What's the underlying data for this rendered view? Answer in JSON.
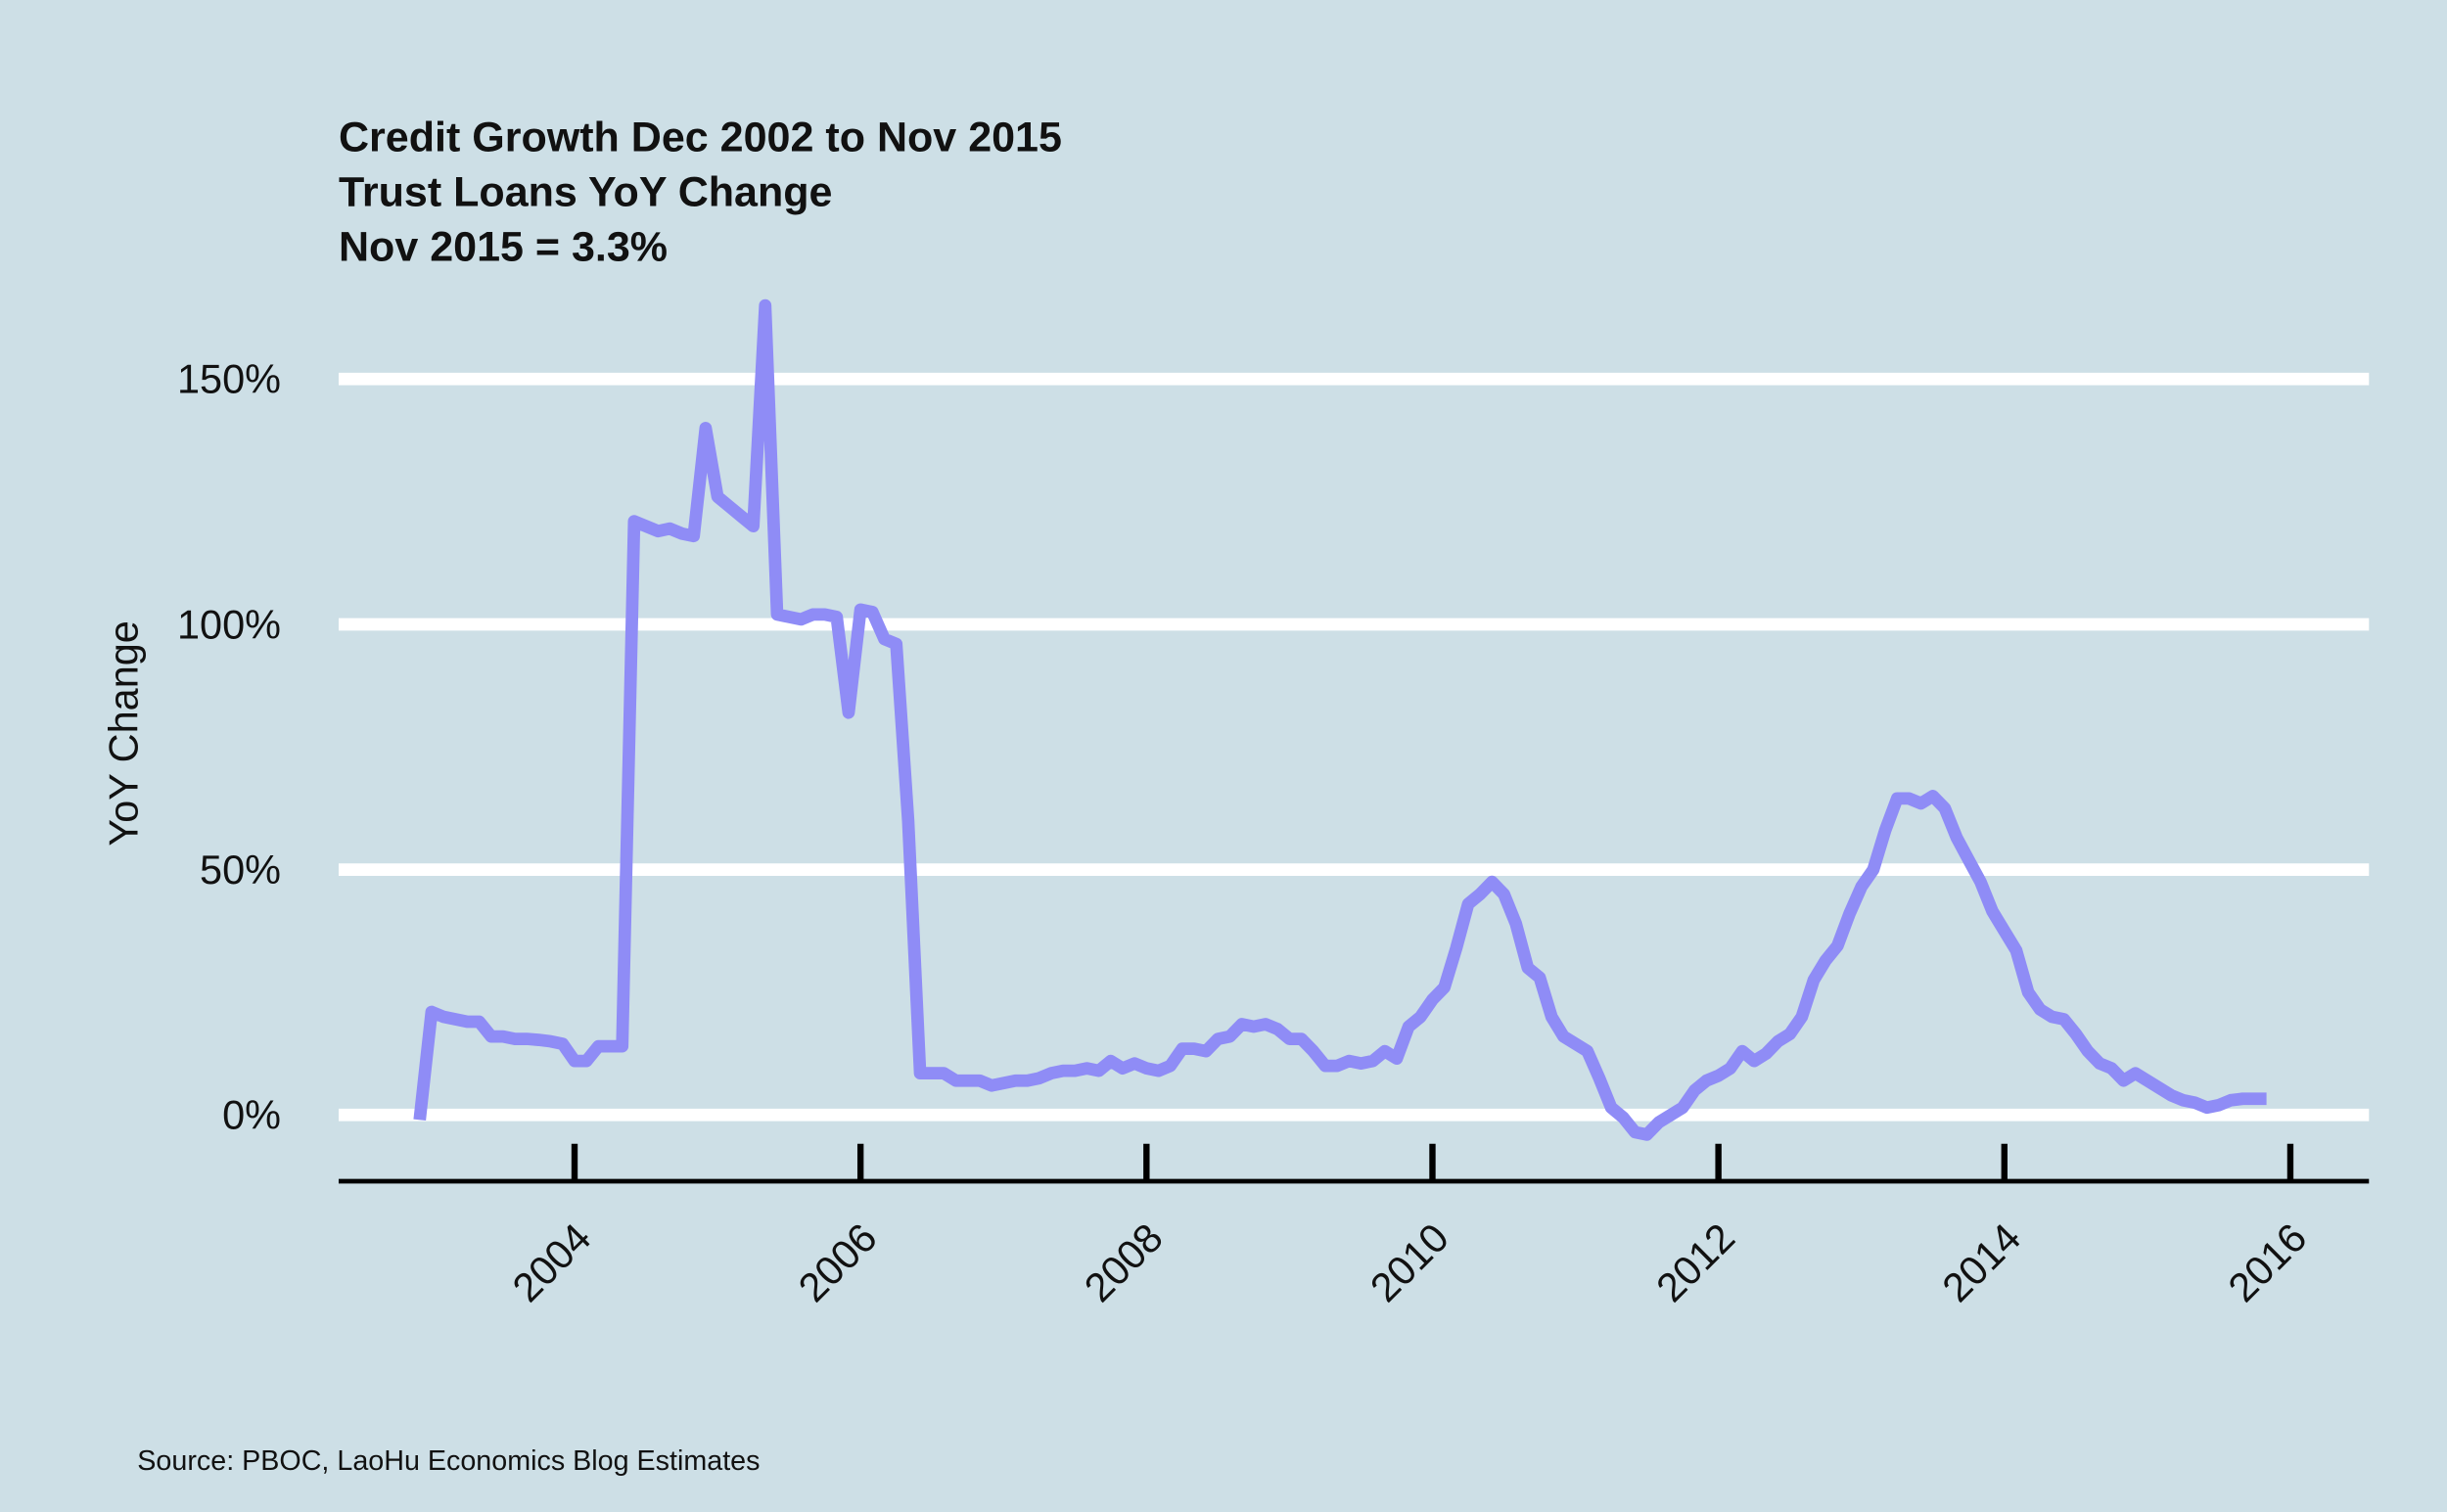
{
  "chart_data": {
    "type": "line",
    "title": "Credit Growth Dec 2002 to Nov 2015",
    "subtitle": "Trust Loans YoY Change",
    "annotation": "Nov 2015 = 3.3%",
    "y_label": "YoY Change",
    "caption": "Source: PBOC, LaoHu Economics Blog Estimates",
    "color": "#8f8cf6",
    "grid": true,
    "xlim": [
      2002.35,
      2016.55
    ],
    "xticks": [
      2004,
      2006,
      2008,
      2010,
      2012,
      2014,
      2016
    ],
    "ylim": [
      -13.5,
      170
    ],
    "yticks": [
      {
        "value": 0,
        "label": "0%"
      },
      {
        "value": 50,
        "label": "50%"
      },
      {
        "value": 100,
        "label": "100%"
      },
      {
        "value": 150,
        "label": "150%"
      }
    ],
    "x": [
      "2002-12",
      "2003-01",
      "2003-02",
      "2003-03",
      "2003-04",
      "2003-05",
      "2003-06",
      "2003-07",
      "2003-08",
      "2003-09",
      "2003-10",
      "2003-11",
      "2003-12",
      "2004-01",
      "2004-02",
      "2004-03",
      "2004-04",
      "2004-05",
      "2004-06",
      "2004-07",
      "2004-08",
      "2004-09",
      "2004-10",
      "2004-11",
      "2004-12",
      "2005-01",
      "2005-02",
      "2005-03",
      "2005-04",
      "2005-05",
      "2005-06",
      "2005-07",
      "2005-08",
      "2005-09",
      "2005-10",
      "2005-11",
      "2005-12",
      "2006-01",
      "2006-02",
      "2006-03",
      "2006-04",
      "2006-05",
      "2006-06",
      "2006-07",
      "2006-08",
      "2006-09",
      "2006-10",
      "2006-11",
      "2006-12",
      "2007-01",
      "2007-02",
      "2007-03",
      "2007-04",
      "2007-05",
      "2007-06",
      "2007-07",
      "2007-08",
      "2007-09",
      "2007-10",
      "2007-11",
      "2007-12",
      "2008-01",
      "2008-02",
      "2008-03",
      "2008-04",
      "2008-05",
      "2008-06",
      "2008-07",
      "2008-08",
      "2008-09",
      "2008-10",
      "2008-11",
      "2008-12",
      "2009-01",
      "2009-02",
      "2009-03",
      "2009-04",
      "2009-05",
      "2009-06",
      "2009-07",
      "2009-08",
      "2009-09",
      "2009-10",
      "2009-11",
      "2009-12",
      "2010-01",
      "2010-02",
      "2010-03",
      "2010-04",
      "2010-05",
      "2010-06",
      "2010-07",
      "2010-08",
      "2010-09",
      "2010-10",
      "2010-11",
      "2010-12",
      "2011-01",
      "2011-02",
      "2011-03",
      "2011-04",
      "2011-05",
      "2011-06",
      "2011-07",
      "2011-08",
      "2011-09",
      "2011-10",
      "2011-11",
      "2011-12",
      "2012-01",
      "2012-02",
      "2012-03",
      "2012-04",
      "2012-05",
      "2012-06",
      "2012-07",
      "2012-08",
      "2012-09",
      "2012-10",
      "2012-11",
      "2012-12",
      "2013-01",
      "2013-02",
      "2013-03",
      "2013-04",
      "2013-05",
      "2013-06",
      "2013-07",
      "2013-08",
      "2013-09",
      "2013-10",
      "2013-11",
      "2013-12",
      "2014-01",
      "2014-02",
      "2014-03",
      "2014-04",
      "2014-05",
      "2014-06",
      "2014-07",
      "2014-08",
      "2014-09",
      "2014-10",
      "2014-11",
      "2014-12",
      "2015-01",
      "2015-02",
      "2015-03",
      "2015-04",
      "2015-05",
      "2015-06",
      "2015-07",
      "2015-08",
      "2015-09",
      "2015-10",
      "2015-11"
    ],
    "values": [
      -1,
      21,
      20,
      19.5,
      19,
      19,
      16,
      16,
      15.5,
      15.5,
      15.3,
      15,
      14.5,
      11,
      11,
      14,
      14,
      14,
      121,
      120,
      119,
      119.5,
      118.5,
      118,
      140,
      126,
      124,
      122,
      120,
      165,
      102,
      101.5,
      101,
      102,
      102,
      101.5,
      82,
      103,
      102.5,
      97,
      96,
      60,
      8.5,
      8.5,
      8.5,
      7,
      7,
      7,
      6,
      6.5,
      7,
      7,
      7.5,
      8.5,
      9,
      9,
      9.5,
      9,
      11,
      9.5,
      10.5,
      9.5,
      9,
      10,
      13.5,
      13.5,
      13,
      15.5,
      16,
      18.5,
      18,
      18.5,
      17.5,
      15.5,
      15.5,
      13,
      10,
      10,
      11,
      10.5,
      11,
      13,
      11.5,
      18,
      20,
      23.5,
      26,
      34,
      43,
      45,
      47.5,
      45,
      39,
      30,
      28,
      20,
      16,
      14.5,
      13,
      7.5,
      1.5,
      -0.5,
      -3.5,
      -4,
      -1.5,
      0,
      1.5,
      5,
      7,
      8,
      9.5,
      13,
      11,
      12.5,
      15,
      16.5,
      20,
      27.5,
      31.5,
      34.5,
      41,
      46.5,
      50,
      58,
      64.5,
      64.5,
      63.5,
      65,
      62.5,
      56.5,
      52,
      47.5,
      41.5,
      37.5,
      33.5,
      25,
      21.5,
      20,
      19.5,
      16.5,
      13,
      10.5,
      9.5,
      7,
      8.5,
      7,
      5.5,
      4,
      3,
      2.5,
      1.5,
      2,
      3,
      3.3,
      3.3,
      3.3
    ]
  }
}
